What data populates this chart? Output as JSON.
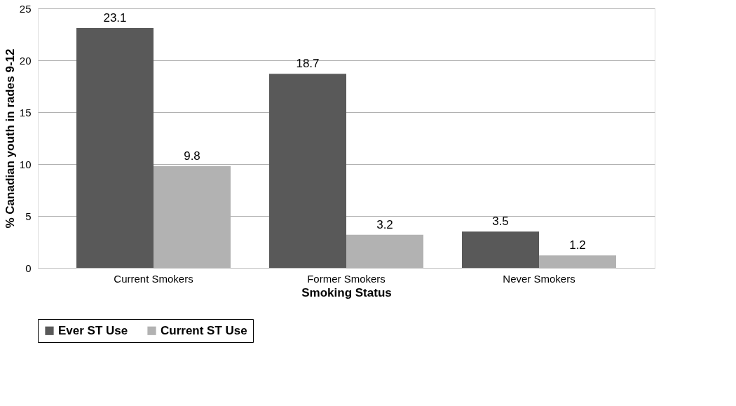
{
  "chart_data": {
    "type": "bar",
    "xlabel": "Smoking Status",
    "ylabel": "% Canadian youth in rades 9-12",
    "categories": [
      "Current Smokers",
      "Former Smokers",
      "Never Smokers"
    ],
    "series": [
      {
        "name": "Ever ST Use",
        "color": "#595959",
        "values": [
          23.1,
          18.7,
          3.5
        ]
      },
      {
        "name": "Current ST Use",
        "color": "#b2b2b2",
        "values": [
          9.8,
          3.2,
          1.2
        ]
      }
    ],
    "ylim": [
      0,
      25
    ],
    "yticks": [
      0,
      5,
      10,
      15,
      20,
      25
    ],
    "grid": "y",
    "legend": "bottom",
    "data_labels": true
  }
}
